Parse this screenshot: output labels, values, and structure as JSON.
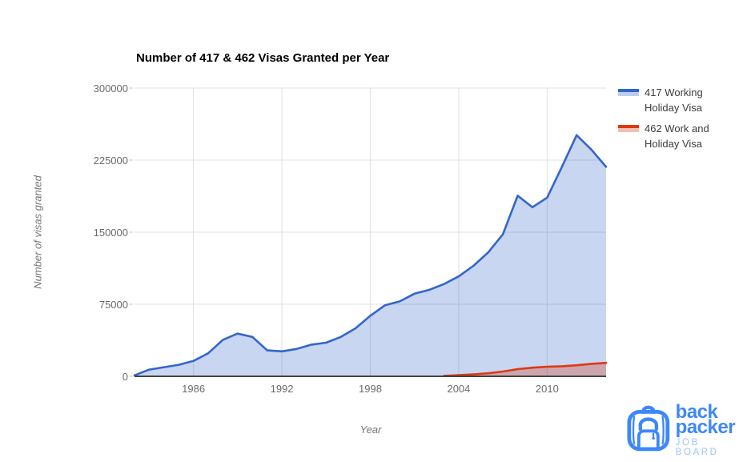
{
  "page": {
    "background": "#ffffff"
  },
  "chart_data": {
    "type": "area",
    "title": "Number of 417 & 462 Visas Granted per Year",
    "xlabel": "Year",
    "ylabel": "Number of visas granted",
    "x_range": [
      1982,
      2014
    ],
    "ylim": [
      0,
      300000
    ],
    "grid": true,
    "legend_position": "right",
    "gridline_color": "#e0e0e0",
    "baseline_color": "#424242",
    "tick_color": "#c9c9c9",
    "label_color": "#6b6b6b",
    "yticks": [
      {
        "value": 0,
        "label": "0"
      },
      {
        "value": 75000,
        "label": "75000"
      },
      {
        "value": 150000,
        "label": "150000"
      },
      {
        "value": 225000,
        "label": "225000"
      },
      {
        "value": 300000,
        "label": "300000"
      }
    ],
    "xticks": [
      {
        "value": 1986,
        "label": "1986"
      },
      {
        "value": 1992,
        "label": "1992"
      },
      {
        "value": 1998,
        "label": "1998"
      },
      {
        "value": 2004,
        "label": "2004"
      },
      {
        "value": 2010,
        "label": "2010"
      }
    ],
    "series": [
      {
        "name": "417 Working Holiday Visa",
        "legend_lines": [
          "417 Working",
          "Holiday Visa"
        ],
        "color": "#3366cc",
        "fill_opacity": 0.27,
        "points": [
          [
            1982,
            1000
          ],
          [
            1983,
            7000
          ],
          [
            1984,
            9500
          ],
          [
            1985,
            12000
          ],
          [
            1986,
            16000
          ],
          [
            1987,
            24000
          ],
          [
            1988,
            38000
          ],
          [
            1989,
            44500
          ],
          [
            1990,
            41000
          ],
          [
            1991,
            27000
          ],
          [
            1992,
            26000
          ],
          [
            1993,
            28500
          ],
          [
            1994,
            33000
          ],
          [
            1995,
            35000
          ],
          [
            1996,
            41000
          ],
          [
            1997,
            50000
          ],
          [
            1998,
            63000
          ],
          [
            1999,
            74000
          ],
          [
            2000,
            78000
          ],
          [
            2001,
            86000
          ],
          [
            2002,
            90000
          ],
          [
            2003,
            96000
          ],
          [
            2004,
            104000
          ],
          [
            2005,
            115000
          ],
          [
            2006,
            129000
          ],
          [
            2007,
            148000
          ],
          [
            2008,
            188000
          ],
          [
            2009,
            176000
          ],
          [
            2010,
            186000
          ],
          [
            2011,
            218000
          ],
          [
            2012,
            251000
          ],
          [
            2013,
            236000
          ],
          [
            2014,
            218000
          ]
        ]
      },
      {
        "name": "462 Work and Holiday Visa",
        "legend_lines": [
          "462 Work and",
          "Holiday Visa"
        ],
        "color": "#dc3912",
        "fill_opacity": 0.3,
        "points": [
          [
            2003,
            500
          ],
          [
            2004,
            1200
          ],
          [
            2005,
            2000
          ],
          [
            2006,
            3200
          ],
          [
            2007,
            5000
          ],
          [
            2008,
            7500
          ],
          [
            2009,
            9000
          ],
          [
            2010,
            10000
          ],
          [
            2011,
            10500
          ],
          [
            2012,
            11500
          ],
          [
            2013,
            13000
          ],
          [
            2014,
            14000
          ]
        ]
      }
    ]
  },
  "logo": {
    "word_top": "back",
    "word_bottom": "packer",
    "tagline": "JOB BOARD",
    "brand_color": "#3d87fb",
    "tagline_color": "#9cc4fd"
  }
}
